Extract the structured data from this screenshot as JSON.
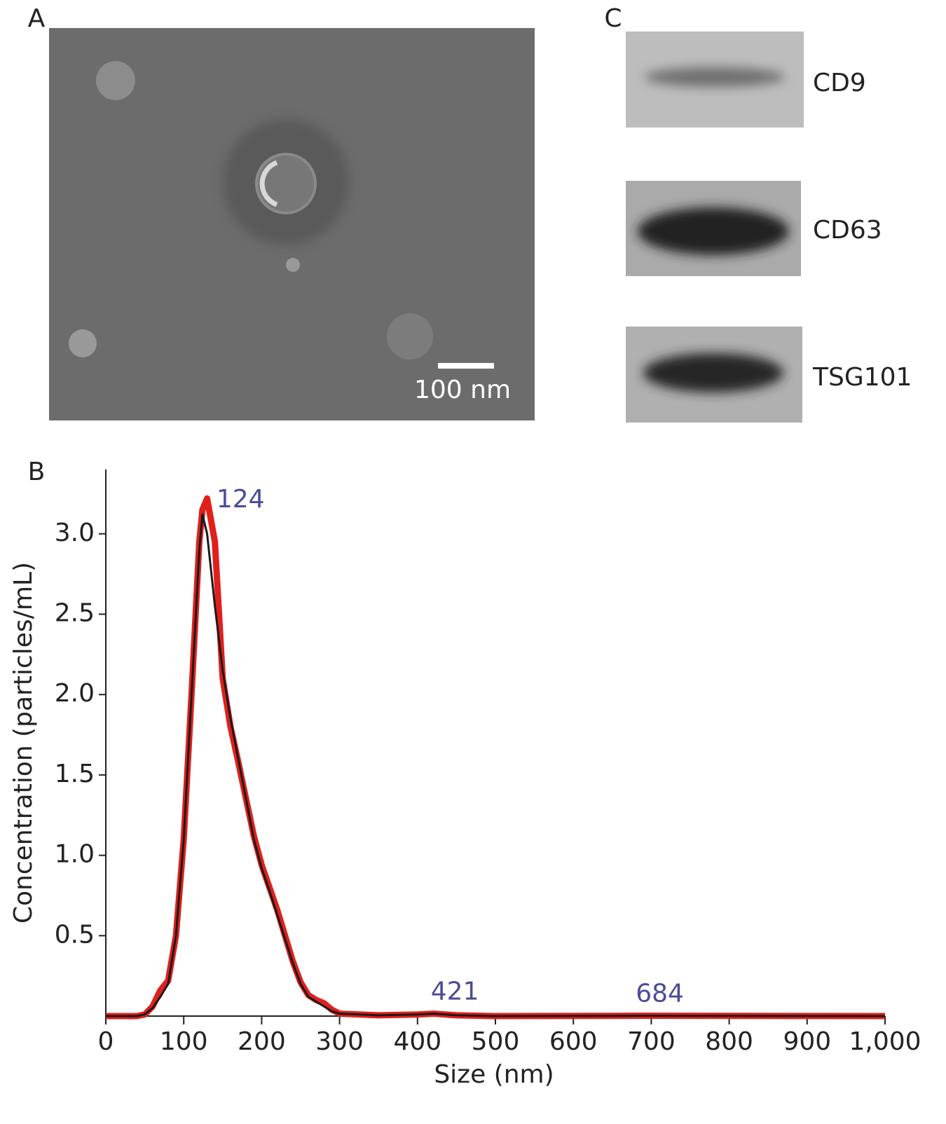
{
  "panels": {
    "a_label": "A",
    "scale_bar": "100 nm",
    "b_label": "B",
    "c_label": "C",
    "blot_labels": [
      "CD9",
      "CD63",
      "TSG101"
    ]
  },
  "chart_data": {
    "type": "line",
    "xlabel": "Size (nm)",
    "ylabel": "Concentration (particles/mL)",
    "x": [
      0,
      40,
      50,
      60,
      70,
      80,
      90,
      100,
      110,
      120,
      124,
      130,
      140,
      150,
      160,
      170,
      180,
      190,
      200,
      210,
      220,
      230,
      240,
      250,
      260,
      270,
      280,
      290,
      300,
      350,
      400,
      421,
      450,
      500,
      684,
      1000
    ],
    "series": [
      {
        "color": "#e0201b",
        "values": [
          0,
          0,
          0.01,
          0.06,
          0.16,
          0.22,
          0.5,
          1.1,
          2.0,
          2.95,
          3.15,
          3.22,
          2.95,
          2.1,
          1.8,
          1.58,
          1.35,
          1.12,
          0.94,
          0.8,
          0.66,
          0.5,
          0.34,
          0.21,
          0.13,
          0.1,
          0.08,
          0.04,
          0.015,
          0.005,
          0.01,
          0.015,
          0.005,
          0,
          0.002,
          0
        ]
      },
      {
        "color": "#1a1a1a",
        "values": [
          0,
          0,
          0.01,
          0.05,
          0.12,
          0.2,
          0.5,
          1.1,
          2.0,
          2.9,
          3.12,
          3.0,
          2.55,
          2.15,
          1.85,
          1.6,
          1.35,
          1.1,
          0.92,
          0.78,
          0.63,
          0.48,
          0.33,
          0.2,
          0.12,
          0.09,
          0.06,
          0.03,
          0.015,
          0.005,
          0.01,
          0.015,
          0.005,
          0,
          0.002,
          0
        ]
      }
    ],
    "peaks": [
      124,
      421,
      684
    ],
    "xlim": [
      0,
      1000
    ],
    "ylim": [
      0,
      3.4
    ],
    "xticks": [
      0,
      100,
      200,
      300,
      400,
      500,
      600,
      700,
      800,
      900,
      {
        "value": 1000,
        "label": "1,000"
      }
    ],
    "yticks": [
      0.5,
      {
        "value": 1,
        "label": "1.0"
      },
      1.5,
      {
        "value": 2,
        "label": "2.0"
      },
      2.5,
      {
        "value": 3,
        "label": "3.0"
      }
    ]
  }
}
